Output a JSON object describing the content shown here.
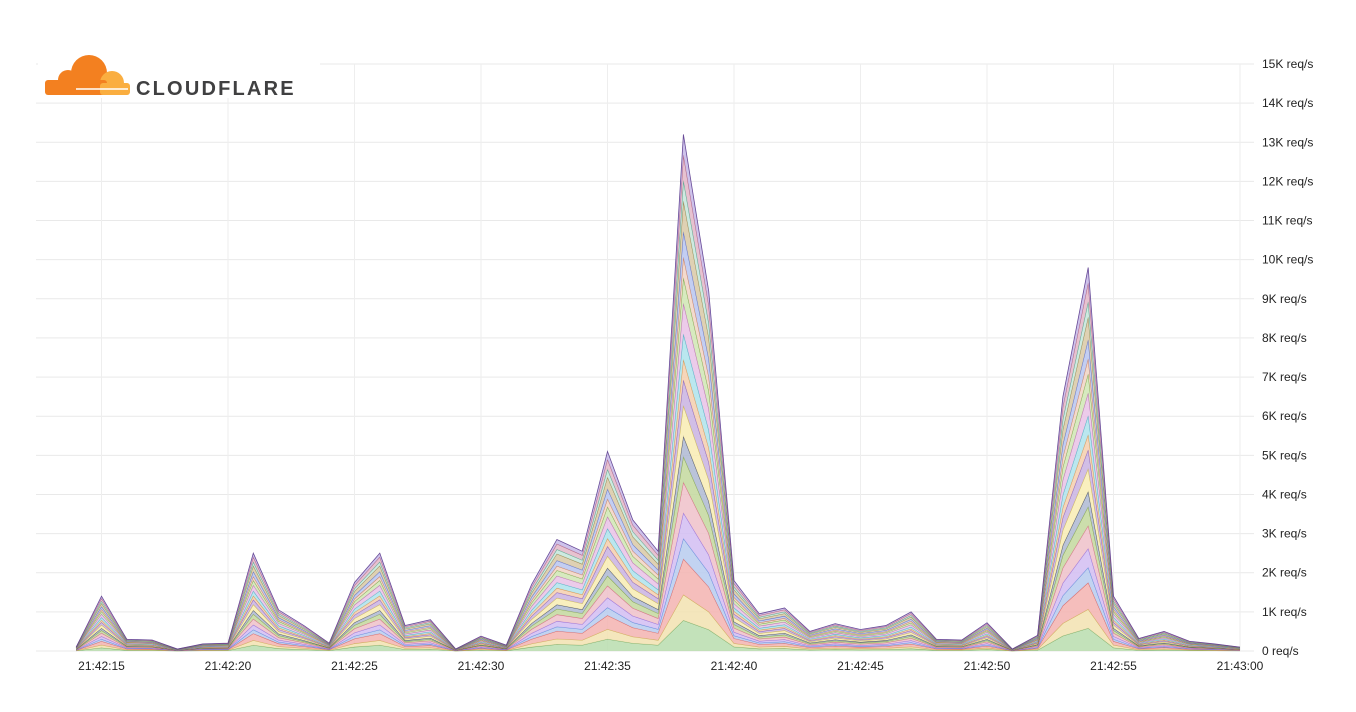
{
  "logo": {
    "text": "CLOUDFLARE"
  },
  "chart_data": {
    "type": "area",
    "stacked": true,
    "title": "",
    "xlabel": "",
    "ylabel": "",
    "ylim": [
      0,
      15000
    ],
    "y_unit": "req/s",
    "y_ticks": [
      "0 req/s",
      "1K req/s",
      "2K req/s",
      "3K req/s",
      "4K req/s",
      "5K req/s",
      "6K req/s",
      "7K req/s",
      "8K req/s",
      "9K req/s",
      "10K req/s",
      "11K req/s",
      "12K req/s",
      "13K req/s",
      "14K req/s",
      "15K req/s"
    ],
    "x_ticks": [
      "21:42:15",
      "21:42:20",
      "21:42:25",
      "21:42:30",
      "21:42:35",
      "21:42:40",
      "21:42:45",
      "21:42:50",
      "21:42:55",
      "21:43:00"
    ],
    "y_axis_position": "right",
    "grid": true,
    "legend": "none",
    "x": [
      "21:42:14",
      "21:42:15",
      "21:42:16",
      "21:42:17",
      "21:42:18",
      "21:42:19",
      "21:42:20",
      "21:42:21",
      "21:42:22",
      "21:42:23",
      "21:42:24",
      "21:42:25",
      "21:42:26",
      "21:42:27",
      "21:42:28",
      "21:42:29",
      "21:42:30",
      "21:42:31",
      "21:42:32",
      "21:42:33",
      "21:42:34",
      "21:42:35",
      "21:42:36",
      "21:42:37",
      "21:42:38",
      "21:42:39",
      "21:42:40",
      "21:42:41",
      "21:42:42",
      "21:42:43",
      "21:42:44",
      "21:42:45",
      "21:42:46",
      "21:42:47",
      "21:42:48",
      "21:42:49",
      "21:42:50",
      "21:42:51",
      "21:42:52",
      "21:42:53",
      "21:42:54",
      "21:42:55",
      "21:42:56",
      "21:42:57",
      "21:42:58",
      "21:42:59",
      "21:43:00"
    ],
    "total": [
      100,
      1400,
      300,
      280,
      50,
      180,
      200,
      2500,
      1050,
      650,
      200,
      1750,
      2500,
      650,
      800,
      50,
      380,
      150,
      1700,
      2850,
      2550,
      5100,
      3350,
      2550,
      13200,
      9200,
      1800,
      950,
      1100,
      500,
      700,
      550,
      650,
      1000,
      300,
      280,
      720,
      50,
      400,
      6500,
      9800,
      1400,
      320,
      500,
      250,
      180,
      100
    ],
    "series_shares": [
      0.06,
      0.05,
      0.07,
      0.04,
      0.05,
      0.06,
      0.05,
      0.04,
      0.06,
      0.05,
      0.04,
      0.05,
      0.06,
      0.05,
      0.04,
      0.05,
      0.06,
      0.04,
      0.05,
      0.04
    ],
    "series_colors": [
      "#b9ddae",
      "#f2e2b0",
      "#f3b3b0",
      "#b7cbee",
      "#d2bdf2",
      "#efc1c9",
      "#c3d89e",
      "#aeb8d2",
      "#f8ecb3",
      "#c9b3e2",
      "#f4cfae",
      "#aee3ec",
      "#e9c2e6",
      "#d0e6b4",
      "#f1d4c4",
      "#b8c5f0",
      "#d9c9a6",
      "#c6e6dc",
      "#e3b7c8",
      "#c5b8e8"
    ],
    "series_edge_colors": [
      "#6aa35a",
      "#c6a745",
      "#d9534f",
      "#4f7fd6",
      "#8a5fd8",
      "#d45a79",
      "#7ea13a",
      "#333a52",
      "#c9b33a",
      "#7a4fb8",
      "#d98b3a",
      "#3aa7bd",
      "#b35aa8",
      "#6e9e3a",
      "#c9704a",
      "#4a5fc9",
      "#8d7a3a",
      "#3a9e80",
      "#a8506e",
      "#5a3a8d"
    ]
  }
}
